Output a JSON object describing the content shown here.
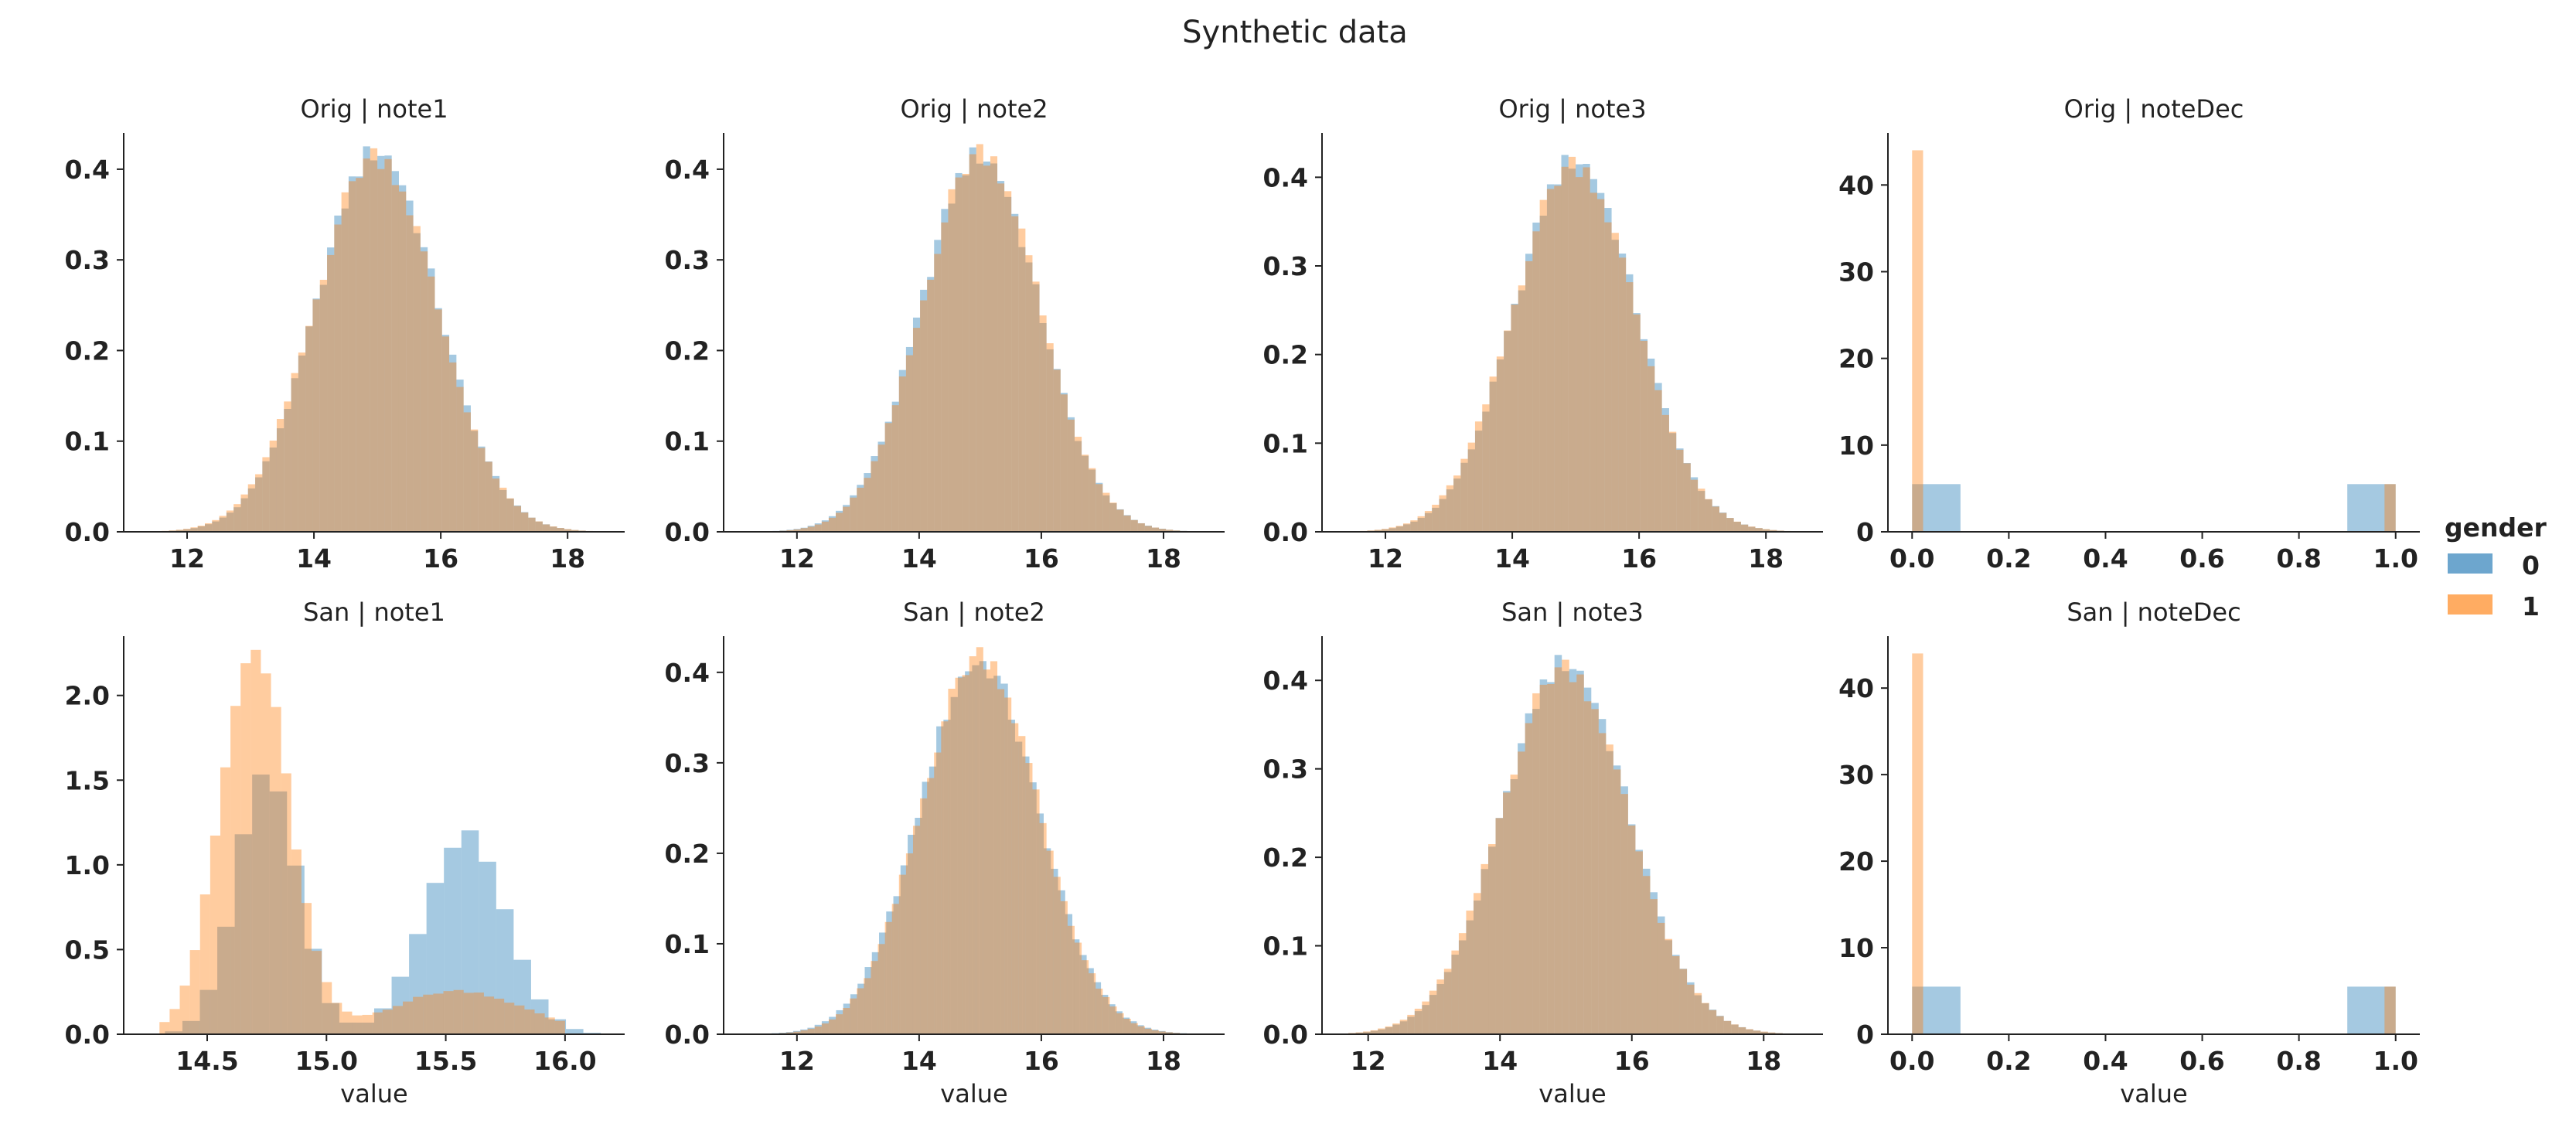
{
  "figure": {
    "suptitle": "Synthetic data",
    "legend": {
      "title": "gender",
      "placement": "right",
      "entries": [
        {
          "label": "0",
          "color": "#1f77b4"
        },
        {
          "label": "1",
          "color": "#ff7f0e"
        }
      ]
    }
  },
  "colors": {
    "series0": "#1f77b4",
    "series1": "#ff7f0e",
    "bar_alpha": 0.4
  },
  "chart_data": [
    {
      "type": "histogram",
      "title": "Orig | note1",
      "xlabel": "",
      "xlim": [
        11.0,
        18.9
      ],
      "ylim": [
        0,
        0.44
      ],
      "xticks": [
        12,
        14,
        16,
        18
      ],
      "xtick_labels": [
        "12",
        "14",
        "16",
        "18"
      ],
      "yticks": [
        0,
        0.1,
        0.2,
        0.3,
        0.4
      ],
      "ytick_labels": [
        "0.0",
        "0.1",
        "0.2",
        "0.3",
        "0.4"
      ],
      "series": [
        {
          "name": "0",
          "dist": "normal",
          "mean": 15.0,
          "sd": 0.95,
          "range": [
            11.6,
            18.4
          ],
          "bins": 60
        },
        {
          "name": "1",
          "dist": "normal",
          "mean": 14.98,
          "sd": 0.96,
          "range": [
            11.6,
            18.4
          ],
          "bins": 60
        }
      ]
    },
    {
      "type": "histogram",
      "title": "Orig | note2",
      "xlabel": "",
      "xlim": [
        10.8,
        19.0
      ],
      "ylim": [
        0,
        0.44
      ],
      "xticks": [
        12,
        14,
        16,
        18
      ],
      "xtick_labels": [
        "12",
        "14",
        "16",
        "18"
      ],
      "yticks": [
        0,
        0.1,
        0.2,
        0.3,
        0.4
      ],
      "ytick_labels": [
        "0.0",
        "0.1",
        "0.2",
        "0.3",
        "0.4"
      ],
      "series": [
        {
          "name": "0",
          "dist": "normal",
          "mean": 15.0,
          "sd": 0.96,
          "range": [
            11.6,
            18.5
          ],
          "bins": 60
        },
        {
          "name": "1",
          "dist": "normal",
          "mean": 15.02,
          "sd": 0.95,
          "range": [
            11.6,
            18.5
          ],
          "bins": 60
        }
      ]
    },
    {
      "type": "histogram",
      "title": "Orig | note3",
      "xlabel": "",
      "xlim": [
        11.0,
        18.9
      ],
      "ylim": [
        0,
        0.45
      ],
      "xticks": [
        12,
        14,
        16,
        18
      ],
      "xtick_labels": [
        "12",
        "14",
        "16",
        "18"
      ],
      "yticks": [
        0,
        0.1,
        0.2,
        0.3,
        0.4
      ],
      "ytick_labels": [
        "0.0",
        "0.1",
        "0.2",
        "0.3",
        "0.4"
      ],
      "series": [
        {
          "name": "0",
          "dist": "normal",
          "mean": 15.0,
          "sd": 0.95,
          "range": [
            11.6,
            18.4
          ],
          "bins": 60
        },
        {
          "name": "1",
          "dist": "normal",
          "mean": 14.98,
          "sd": 0.96,
          "range": [
            11.6,
            18.4
          ],
          "bins": 60
        }
      ]
    },
    {
      "type": "histogram",
      "title": "Orig | noteDec",
      "xlabel": "",
      "xlim": [
        -0.05,
        1.05
      ],
      "ylim": [
        0,
        46
      ],
      "xticks": [
        0,
        0.2,
        0.4,
        0.6,
        0.8,
        1.0
      ],
      "xtick_labels": [
        "0.0",
        "0.2",
        "0.4",
        "0.6",
        "0.8",
        "1.0"
      ],
      "yticks": [
        0,
        10,
        20,
        30,
        40
      ],
      "ytick_labels": [
        "0",
        "10",
        "20",
        "30",
        "40"
      ],
      "series": [
        {
          "name": "0",
          "dist": "bars",
          "bars": [
            {
              "x0": 0.0,
              "x1": 0.1,
              "h": 5.5
            },
            {
              "x0": 0.9,
              "x1": 1.0,
              "h": 5.5
            }
          ]
        },
        {
          "name": "1",
          "dist": "bars",
          "bars": [
            {
              "x0": 0.0,
              "x1": 0.0227,
              "h": 44
            },
            {
              "x0": 0.977,
              "x1": 1.0,
              "h": 5.5
            }
          ]
        }
      ]
    },
    {
      "type": "histogram",
      "title": "San | note1",
      "xlabel": "value",
      "xlim": [
        14.15,
        16.25
      ],
      "ylim": [
        0,
        2.35
      ],
      "xticks": [
        14.5,
        15.0,
        15.5,
        16.0
      ],
      "xtick_labels": [
        "14.5",
        "15.0",
        "15.5",
        "16.0"
      ],
      "yticks": [
        0,
        0.5,
        1.0,
        1.5,
        2.0
      ],
      "ytick_labels": [
        "0.0",
        "0.5",
        "1.0",
        "1.5",
        "2.0"
      ],
      "series": [
        {
          "name": "0",
          "dist": "bimodal",
          "components": [
            {
              "w": 0.5,
              "mean": 14.75,
              "sd": 0.13
            },
            {
              "w": 0.5,
              "mean": 15.58,
              "sd": 0.17
            }
          ],
          "range": [
            14.25,
            16.15
          ],
          "bins": 26
        },
        {
          "name": "1",
          "dist": "bimodal",
          "components": [
            {
              "w": 0.82,
              "mean": 14.7,
              "sd": 0.145
            },
            {
              "w": 0.18,
              "mean": 15.55,
              "sd": 0.28
            }
          ],
          "range": [
            14.3,
            16.0
          ],
          "bins": 40
        }
      ]
    },
    {
      "type": "histogram",
      "title": "San | note2",
      "xlabel": "value",
      "xlim": [
        10.8,
        19.0
      ],
      "ylim": [
        0,
        0.44
      ],
      "xticks": [
        12,
        14,
        16,
        18
      ],
      "xtick_labels": [
        "12",
        "14",
        "16",
        "18"
      ],
      "yticks": [
        0,
        0.1,
        0.2,
        0.3,
        0.4
      ],
      "ytick_labels": [
        "0.0",
        "0.1",
        "0.2",
        "0.3",
        "0.4"
      ],
      "series": [
        {
          "name": "0",
          "dist": "normal",
          "mean": 14.98,
          "sd": 0.97,
          "range": [
            11.0,
            18.5
          ],
          "bins": 64
        },
        {
          "name": "1",
          "dist": "normal",
          "mean": 15.0,
          "sd": 0.95,
          "range": [
            11.6,
            18.5
          ],
          "bins": 60
        }
      ]
    },
    {
      "type": "histogram",
      "title": "San | note3",
      "xlabel": "value",
      "xlim": [
        11.3,
        18.9
      ],
      "ylim": [
        0,
        0.45
      ],
      "xticks": [
        12,
        14,
        16,
        18
      ],
      "xtick_labels": [
        "12",
        "14",
        "16",
        "18"
      ],
      "yticks": [
        0,
        0.1,
        0.2,
        0.3,
        0.4
      ],
      "ytick_labels": [
        "0.0",
        "0.1",
        "0.2",
        "0.3",
        "0.4"
      ],
      "series": [
        {
          "name": "0",
          "dist": "normal",
          "mean": 15.0,
          "sd": 0.95,
          "range": [
            11.7,
            18.4
          ],
          "bins": 60
        },
        {
          "name": "1",
          "dist": "normal",
          "mean": 14.98,
          "sd": 0.96,
          "range": [
            11.7,
            18.4
          ],
          "bins": 60
        }
      ]
    },
    {
      "type": "histogram",
      "title": "San | noteDec",
      "xlabel": "value",
      "xlim": [
        -0.05,
        1.05
      ],
      "ylim": [
        0,
        46
      ],
      "xticks": [
        0,
        0.2,
        0.4,
        0.6,
        0.8,
        1.0
      ],
      "xtick_labels": [
        "0.0",
        "0.2",
        "0.4",
        "0.6",
        "0.8",
        "1.0"
      ],
      "yticks": [
        0,
        10,
        20,
        30,
        40
      ],
      "ytick_labels": [
        "0",
        "10",
        "20",
        "30",
        "40"
      ],
      "series": [
        {
          "name": "0",
          "dist": "bars",
          "bars": [
            {
              "x0": 0.0,
              "x1": 0.1,
              "h": 5.5
            },
            {
              "x0": 0.9,
              "x1": 1.0,
              "h": 5.5
            }
          ]
        },
        {
          "name": "1",
          "dist": "bars",
          "bars": [
            {
              "x0": 0.0,
              "x1": 0.0227,
              "h": 44
            },
            {
              "x0": 0.977,
              "x1": 1.0,
              "h": 5.5
            }
          ]
        }
      ]
    }
  ]
}
